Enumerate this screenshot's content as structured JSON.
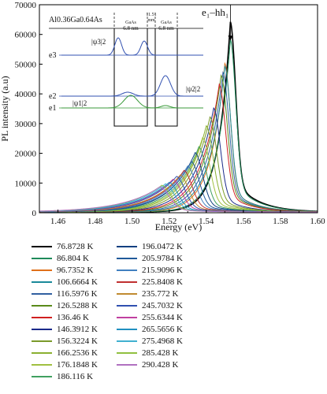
{
  "chart_data": {
    "type": "line",
    "xlabel": "Energy (eV)",
    "ylabel": "PL intensity (a.u)",
    "xlim": [
      1.45,
      1.6
    ],
    "ylim": [
      0,
      70000
    ],
    "x_ticks": [
      "1.46",
      "1.48",
      "1.50",
      "1.52",
      "1.54",
      "1.56",
      "1.58",
      "1.60"
    ],
    "y_ticks": [
      "0",
      "10000",
      "20000",
      "30000",
      "40000",
      "50000",
      "60000",
      "70000"
    ],
    "grid": false,
    "legend_position": "below-left",
    "peak_annotation": {
      "label": "e₁–hh₁",
      "energy": 1.553
    },
    "series": [
      {
        "name": "76.8728 K",
        "color": "#000000",
        "peak_energy": 1.553,
        "peak_value": 64000
      },
      {
        "name": "86.804 K",
        "color": "#1e8a5a",
        "peak_energy": 1.553,
        "peak_value": 58000
      },
      {
        "name": "96.7352 K",
        "color": "#e0701a",
        "peak_energy": 1.55,
        "peak_value": 50000
      },
      {
        "name": "106.6664 K",
        "color": "#1a8a9a",
        "peak_energy": 1.55,
        "peak_value": 49000
      },
      {
        "name": "116.5976 K",
        "color": "#3060a0",
        "peak_energy": 1.549,
        "peak_value": 47000
      },
      {
        "name": "126.5288 K",
        "color": "#5a8a1a",
        "peak_energy": 1.548,
        "peak_value": 46000
      },
      {
        "name": "136.46 K",
        "color": "#d02020",
        "peak_energy": 1.547,
        "peak_value": 43000
      },
      {
        "name": "146.3912 K",
        "color": "#1a2a8a",
        "peak_energy": 1.544,
        "peak_value": 35000
      },
      {
        "name": "156.3224 K",
        "color": "#7a9a2a",
        "peak_energy": 1.542,
        "peak_value": 32000
      },
      {
        "name": "166.2536 K",
        "color": "#8ab030",
        "peak_energy": 1.54,
        "peak_value": 29000
      },
      {
        "name": "176.1848 K",
        "color": "#a0c040",
        "peak_energy": 1.538,
        "peak_value": 25000
      },
      {
        "name": "186.116 K",
        "color": "#40a060",
        "peak_energy": 1.536,
        "peak_value": 22000
      },
      {
        "name": "196.0472 K",
        "color": "#104080",
        "peak_energy": 1.534,
        "peak_value": 20000
      },
      {
        "name": "205.9784 K",
        "color": "#205a9a",
        "peak_energy": 1.532,
        "peak_value": 17000
      },
      {
        "name": "215.9096 K",
        "color": "#4080c0",
        "peak_energy": 1.53,
        "peak_value": 15500
      },
      {
        "name": "225.8408 K",
        "color": "#c03030",
        "peak_energy": 1.528,
        "peak_value": 14000
      },
      {
        "name": "235.772 K",
        "color": "#c08a30",
        "peak_energy": 1.526,
        "peak_value": 12500
      },
      {
        "name": "245.7032 K",
        "color": "#3050b0",
        "peak_energy": 1.524,
        "peak_value": 12000
      },
      {
        "name": "255.6344 K",
        "color": "#c040a0",
        "peak_energy": 1.522,
        "peak_value": 11000
      },
      {
        "name": "265.5656 K",
        "color": "#2090c0",
        "peak_energy": 1.52,
        "peak_value": 10000
      },
      {
        "name": "275.4968 K",
        "color": "#40b0d0",
        "peak_energy": 1.518,
        "peak_value": 9500
      },
      {
        "name": "285.428 K",
        "color": "#90c040",
        "peak_energy": 1.516,
        "peak_value": 9000
      },
      {
        "name": "290.428 K",
        "color": "#b070c0",
        "peak_energy": 1.515,
        "peak_value": 8500
      }
    ],
    "inset": {
      "barrier_label": "Al0.36Ga0.64As",
      "well_label": "GaAs",
      "well_width": "6.8 nm",
      "barrier_width": "11.51 ",
      "barrier_unit": "mm",
      "levels": [
        "e3",
        "e2",
        "e1"
      ],
      "wavefunction_labels": [
        "|ψ3|2",
        "|ψ2|2",
        "|ψ1|2"
      ]
    }
  }
}
